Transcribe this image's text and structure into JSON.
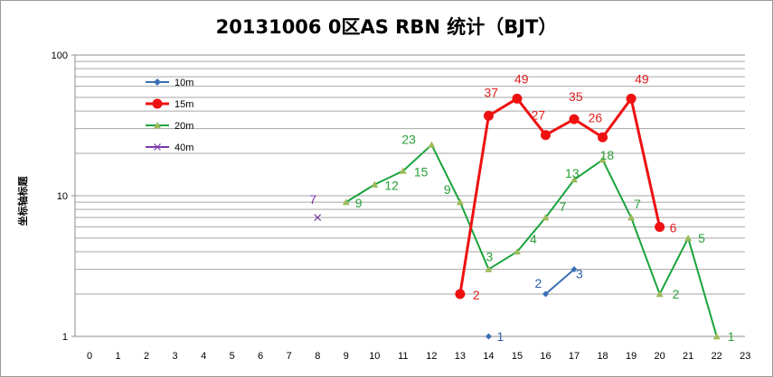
{
  "chart_data": {
    "type": "line",
    "title": "20131006 0区AS RBN 统计（BJT）",
    "ylabel": "坐标轴标题",
    "xlabel": "",
    "x_categories": [
      "0",
      "1",
      "2",
      "3",
      "4",
      "5",
      "6",
      "7",
      "8",
      "9",
      "10",
      "11",
      "12",
      "13",
      "14",
      "15",
      "16",
      "17",
      "18",
      "19",
      "20",
      "21",
      "22",
      "23"
    ],
    "y_scale": "log",
    "ylim": [
      1,
      100
    ],
    "y_ticks": [
      "1",
      "10",
      "100"
    ],
    "grid": true,
    "legend_position": "upper-left",
    "series": [
      {
        "name": "10m",
        "color": "#3a6fb5",
        "marker": "diamond",
        "line_width": 2,
        "points": [
          [
            14,
            1
          ],
          [
            16,
            2
          ],
          [
            17,
            3
          ]
        ],
        "segments": [
          [
            16,
            17
          ]
        ]
      },
      {
        "name": "15m",
        "color": "#ee1111",
        "marker": "circle",
        "line_width": 3,
        "points": [
          [
            13,
            2
          ],
          [
            14,
            37
          ],
          [
            15,
            49
          ],
          [
            16,
            27
          ],
          [
            17,
            35
          ],
          [
            18,
            26
          ],
          [
            19,
            49
          ],
          [
            20,
            6
          ]
        ],
        "segments": [
          [
            13,
            20
          ]
        ]
      },
      {
        "name": "20m",
        "color": "#19a33c",
        "marker": "triangle",
        "line_width": 2,
        "points": [
          [
            9,
            9
          ],
          [
            10,
            12
          ],
          [
            11,
            15
          ],
          [
            12,
            23
          ],
          [
            13,
            9
          ],
          [
            14,
            3
          ],
          [
            15,
            4
          ],
          [
            16,
            7
          ],
          [
            17,
            13
          ],
          [
            18,
            18
          ],
          [
            19,
            7
          ],
          [
            20,
            2
          ],
          [
            21,
            5
          ],
          [
            22,
            1
          ]
        ],
        "segments": [
          [
            9,
            22
          ]
        ]
      },
      {
        "name": "40m",
        "color": "#7c3aa8",
        "marker": "x",
        "line_width": 2,
        "points": [
          [
            8,
            7
          ]
        ],
        "segments": []
      }
    ]
  }
}
